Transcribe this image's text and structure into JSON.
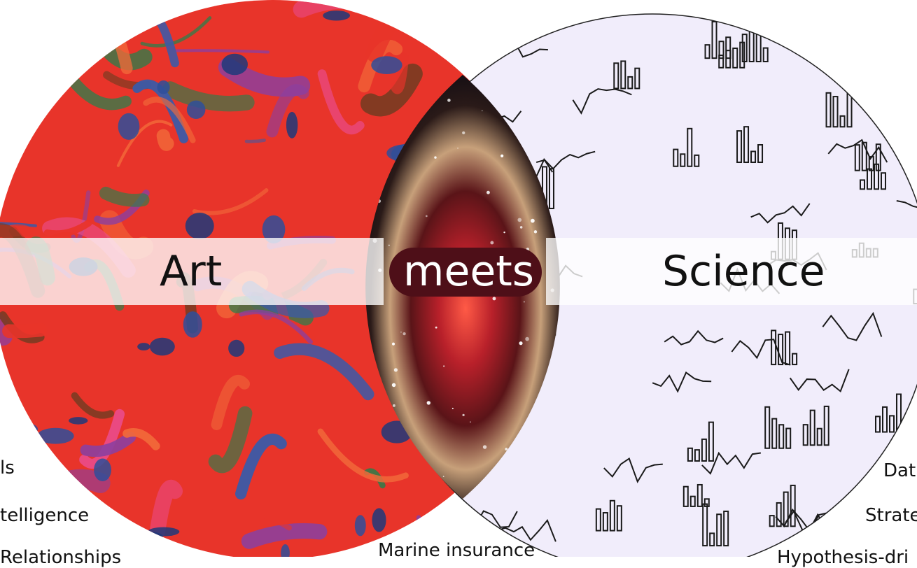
{
  "title": {
    "left": "Art",
    "middle": "meets",
    "right": "Science"
  },
  "left_list": [
    "ls",
    "telligence",
    "Relationships"
  ],
  "bottom_center": "Marine insurance",
  "right_list": [
    "Dat",
    "Strate",
    "Hypothesis-dri"
  ],
  "colors": {
    "band": "#ffffff",
    "meets_pill": "#4e0f18",
    "science_bg": "#f1edfb",
    "art_palette": [
      "#e8342a",
      "#f26a3a",
      "#3a5aa8",
      "#8b3fa0",
      "#e94c8c",
      "#2f7d4a",
      "#7a3b22"
    ],
    "space_palette": [
      "#0a0a1a",
      "#c7a07a",
      "#c8322c",
      "#ffffff"
    ]
  },
  "icons": [
    "art-painting-texture",
    "space-nebula-image",
    "science-sketch-doodles"
  ]
}
